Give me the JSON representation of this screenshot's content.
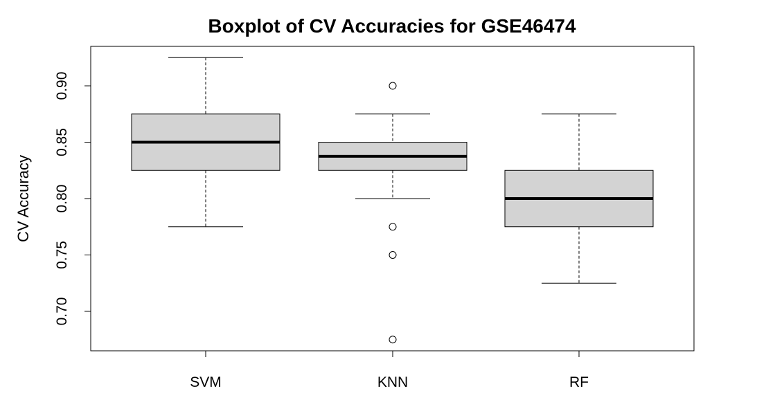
{
  "chart_data": {
    "type": "boxplot",
    "title": "Boxplot of CV Accuracies for GSE46474",
    "xlabel": "",
    "ylabel": "CV Accuracy",
    "ylim": [
      0.665,
      0.935
    ],
    "yticks": [
      0.7,
      0.75,
      0.8,
      0.85,
      0.9
    ],
    "ytick_labels": [
      "0.70",
      "0.75",
      "0.80",
      "0.85",
      "0.90"
    ],
    "categories": [
      "SVM",
      "KNN",
      "RF"
    ],
    "boxes": [
      {
        "name": "SVM",
        "whisker_low": 0.775,
        "q1": 0.825,
        "median": 0.85,
        "q3": 0.875,
        "whisker_high": 0.925,
        "outliers": []
      },
      {
        "name": "KNN",
        "whisker_low": 0.8,
        "q1": 0.825,
        "median": 0.8375,
        "q3": 0.85,
        "whisker_high": 0.875,
        "outliers": [
          0.9,
          0.775,
          0.75,
          0.675
        ]
      },
      {
        "name": "RF",
        "whisker_low": 0.725,
        "q1": 0.775,
        "median": 0.8,
        "q3": 0.825,
        "whisker_high": 0.875,
        "outliers": []
      }
    ],
    "grid": false,
    "legend": "none",
    "colors": {
      "box_fill": "#d3d3d3",
      "stroke": "#000000",
      "background": "#ffffff"
    }
  }
}
